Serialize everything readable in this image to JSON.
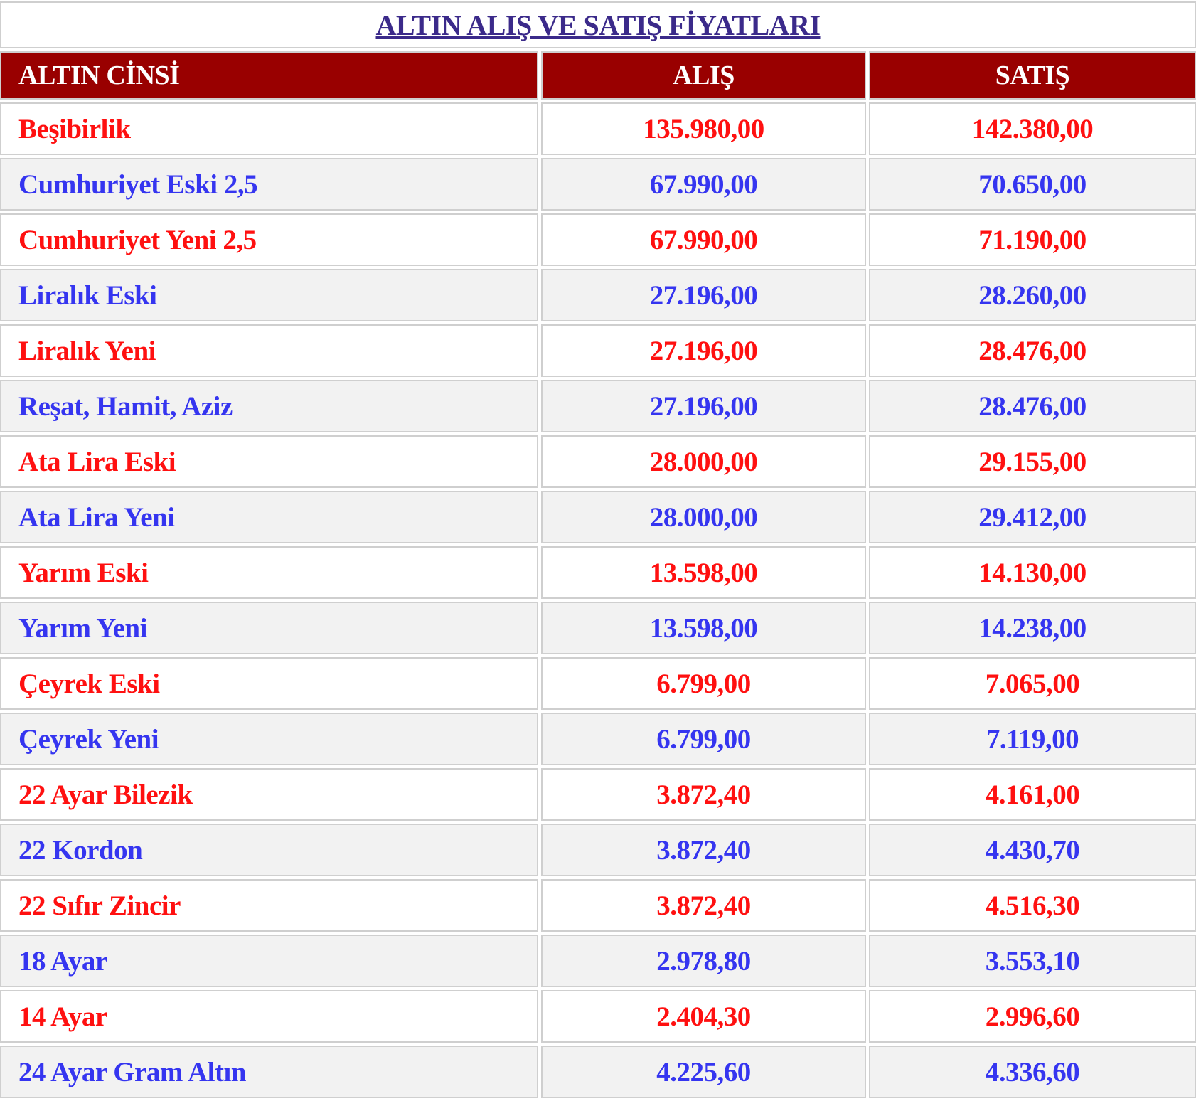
{
  "title": "ALTIN ALIŞ VE SATIŞ FİYATLARI",
  "colors": {
    "header_bg": "#990000",
    "odd_text": "#ff1010",
    "even_text": "#3535f0",
    "title": "#3b2a8a"
  },
  "headers": [
    "ALTIN CİNSİ",
    "ALIŞ",
    "SATIŞ"
  ],
  "rows": [
    [
      "Beşibirlik",
      "135.980,00",
      "142.380,00"
    ],
    [
      "Cumhuriyet Eski 2,5",
      "67.990,00",
      "70.650,00"
    ],
    [
      "Cumhuriyet Yeni 2,5",
      "67.990,00",
      "71.190,00"
    ],
    [
      "Liralık Eski",
      "27.196,00",
      "28.260,00"
    ],
    [
      "Liralık Yeni",
      "27.196,00",
      "28.476,00"
    ],
    [
      "Reşat, Hamit, Aziz",
      "27.196,00",
      "28.476,00"
    ],
    [
      "Ata Lira Eski",
      "28.000,00",
      "29.155,00"
    ],
    [
      "Ata Lira Yeni",
      "28.000,00",
      "29.412,00"
    ],
    [
      "Yarım Eski",
      "13.598,00",
      "14.130,00"
    ],
    [
      "Yarım Yeni",
      "13.598,00",
      "14.238,00"
    ],
    [
      "Çeyrek Eski",
      "6.799,00",
      "7.065,00"
    ],
    [
      "Çeyrek Yeni",
      "6.799,00",
      "7.119,00"
    ],
    [
      "22 Ayar Bilezik",
      "3.872,40",
      "4.161,00"
    ],
    [
      "22 Kordon",
      "3.872,40",
      "4.430,70"
    ],
    [
      "22 Sıfır Zincir",
      "3.872,40",
      "4.516,30"
    ],
    [
      "18 Ayar",
      "2.978,80",
      "3.553,10"
    ],
    [
      "14 Ayar",
      "2.404,30",
      "2.996,60"
    ],
    [
      "24 Ayar Gram Altın",
      "4.225,60",
      "4.336,60"
    ]
  ]
}
